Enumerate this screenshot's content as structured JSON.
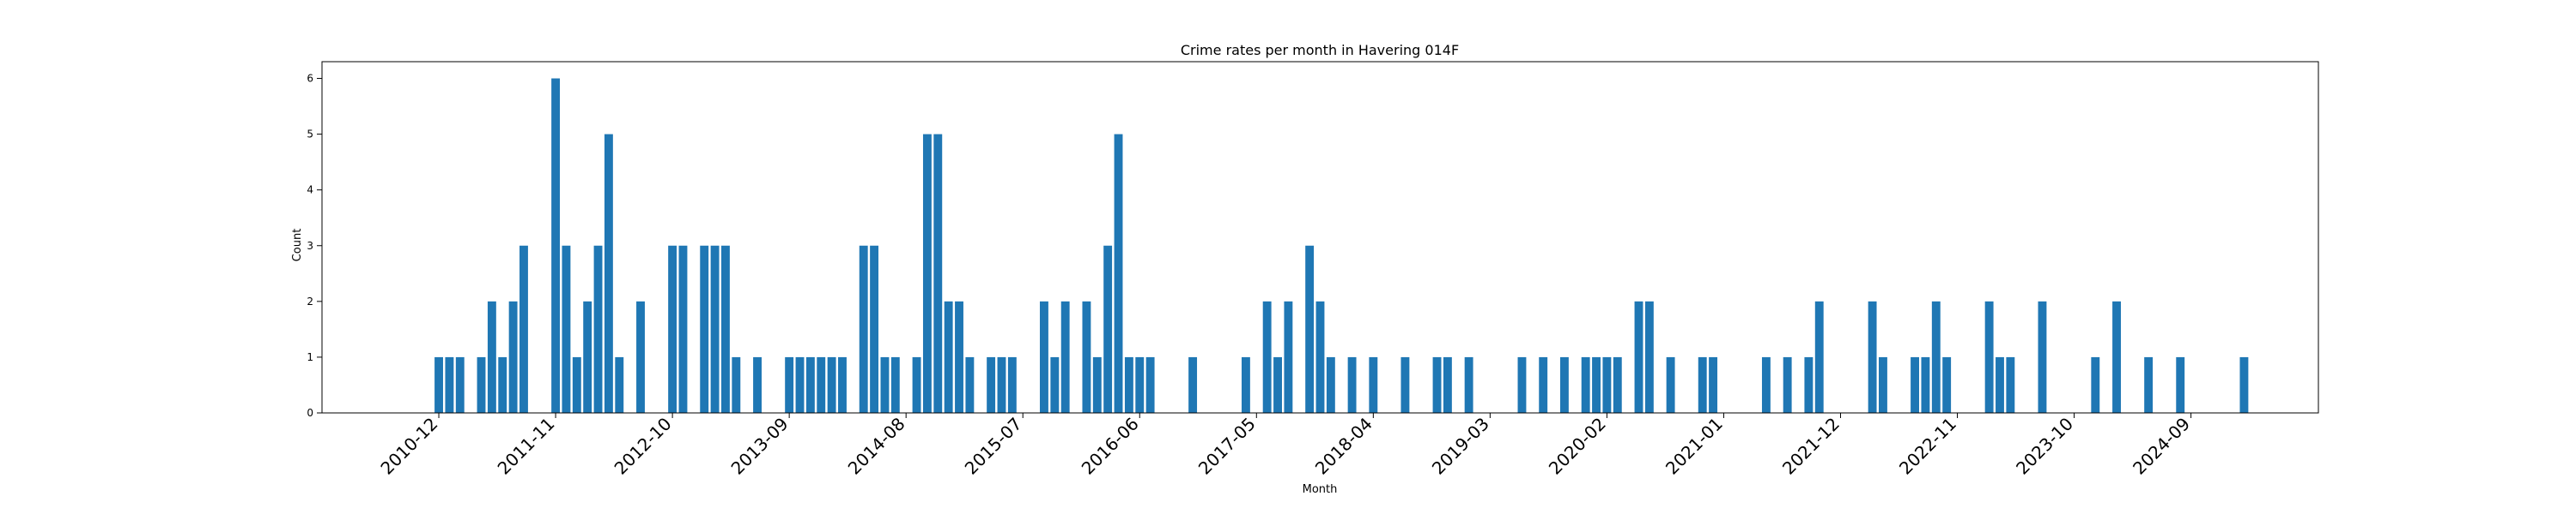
{
  "chart_data": {
    "type": "bar",
    "title": "Crime rates per month in Havering 014F",
    "xlabel": "Month",
    "ylabel": "Count",
    "ylim": [
      0,
      6.3
    ],
    "yticks": [
      0,
      1,
      2,
      3,
      4,
      5,
      6
    ],
    "x_axis_start": "2010-01",
    "x_axis_end": "2025-09",
    "xticks": [
      "2010-12",
      "2011-11",
      "2012-10",
      "2013-09",
      "2014-08",
      "2015-07",
      "2016-06",
      "2017-05",
      "2018-04",
      "2019-03",
      "2020-02",
      "2021-01",
      "2021-12",
      "2022-11",
      "2023-10",
      "2024-09"
    ],
    "color": "#1f77b4",
    "categories": [
      "2010-12",
      "2011-01",
      "2011-02",
      "2011-04",
      "2011-05",
      "2011-06",
      "2011-07",
      "2011-08",
      "2011-11",
      "2011-12",
      "2012-01",
      "2012-02",
      "2012-03",
      "2012-04",
      "2012-05",
      "2012-07",
      "2012-10",
      "2012-11",
      "2013-01",
      "2013-02",
      "2013-03",
      "2013-04",
      "2013-06",
      "2013-09",
      "2013-10",
      "2013-11",
      "2013-12",
      "2014-01",
      "2014-02",
      "2014-04",
      "2014-05",
      "2014-06",
      "2014-07",
      "2014-09",
      "2014-10",
      "2014-11",
      "2014-12",
      "2015-01",
      "2015-02",
      "2015-04",
      "2015-05",
      "2015-06",
      "2015-09",
      "2015-10",
      "2015-11",
      "2016-01",
      "2016-02",
      "2016-03",
      "2016-04",
      "2016-05",
      "2016-06",
      "2016-07",
      "2016-11",
      "2017-04",
      "2017-06",
      "2017-07",
      "2017-08",
      "2017-10",
      "2017-11",
      "2017-12",
      "2018-02",
      "2018-04",
      "2018-07",
      "2018-10",
      "2018-11",
      "2019-01",
      "2019-06",
      "2019-08",
      "2019-10",
      "2019-12",
      "2020-01",
      "2020-02",
      "2020-03",
      "2020-05",
      "2020-06",
      "2020-08",
      "2020-11",
      "2020-12",
      "2021-05",
      "2021-07",
      "2021-09",
      "2021-10",
      "2022-03",
      "2022-04",
      "2022-07",
      "2022-08",
      "2022-09",
      "2022-10",
      "2023-02",
      "2023-03",
      "2023-04",
      "2023-07",
      "2023-12",
      "2024-02",
      "2024-05",
      "2024-08",
      "2025-02"
    ],
    "values": [
      1,
      1,
      1,
      1,
      2,
      1,
      2,
      3,
      6,
      3,
      1,
      2,
      3,
      5,
      1,
      2,
      3,
      3,
      3,
      3,
      3,
      1,
      1,
      1,
      1,
      1,
      1,
      1,
      1,
      3,
      3,
      1,
      1,
      1,
      5,
      5,
      2,
      2,
      1,
      1,
      1,
      1,
      2,
      1,
      2,
      2,
      1,
      3,
      5,
      1,
      1,
      1,
      1,
      1,
      2,
      1,
      2,
      3,
      2,
      1,
      1,
      1,
      1,
      1,
      1,
      1,
      1,
      1,
      1,
      1,
      1,
      1,
      1,
      2,
      2,
      1,
      1,
      1,
      1,
      1,
      1,
      2,
      2,
      1,
      1,
      1,
      2,
      1,
      2,
      1,
      1,
      2,
      1,
      2,
      1,
      1,
      1
    ]
  }
}
